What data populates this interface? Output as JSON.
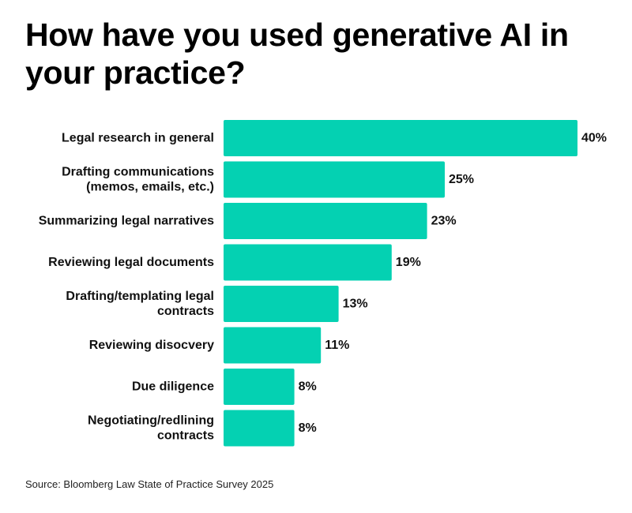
{
  "title": "How have you used generative AI in your practice?",
  "source": "Source: Bloomberg Law State of Practice Survey 2025",
  "colors": {
    "bar": "#04d1b2",
    "text": "#111111"
  },
  "chart_data": {
    "type": "bar",
    "orientation": "horizontal",
    "title": "How have you used generative AI in your practice?",
    "categories": [
      [
        "Legal research in general"
      ],
      [
        "Drafting communications",
        "(memos, emails, etc.)"
      ],
      [
        "Summarizing legal narratives"
      ],
      [
        "Reviewing legal documents"
      ],
      [
        "Drafting/templating legal",
        "contracts"
      ],
      [
        "Reviewing disocvery"
      ],
      [
        "Due diligence"
      ],
      [
        "Negotiating/redlining",
        "contracts"
      ]
    ],
    "values": [
      40,
      25,
      23,
      19,
      13,
      11,
      8,
      8
    ],
    "value_labels": [
      "40%",
      "25%",
      "23%",
      "19%",
      "13%",
      "11%",
      "8%",
      "8%"
    ],
    "unit": "%",
    "xlim": [
      0,
      40
    ],
    "grid": false,
    "legend": "none"
  }
}
